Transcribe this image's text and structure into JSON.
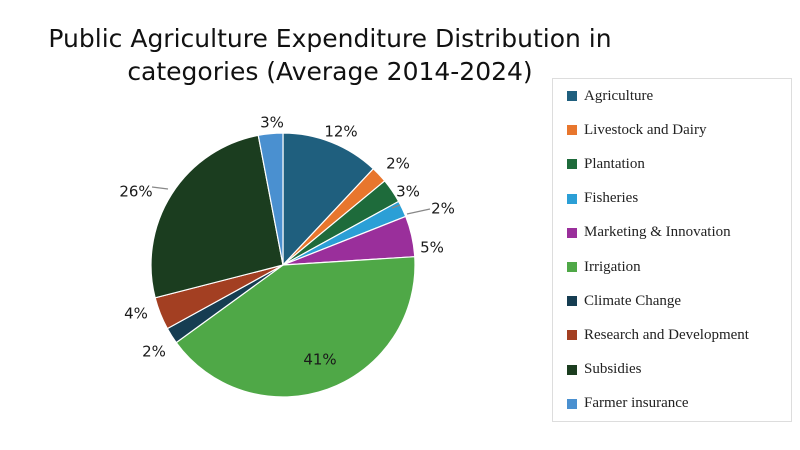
{
  "chart_data": {
    "type": "pie",
    "title_lines": [
      "Public Agriculture Expenditure Distribution in",
      "categories (Average 2014-2024)"
    ],
    "unit": "%",
    "slices": [
      {
        "name": "Agriculture",
        "value": 12,
        "label": "12%",
        "color": "#1f5f7e"
      },
      {
        "name": "Livestock and Dairy",
        "value": 2,
        "label": "2%",
        "color": "#e8762d"
      },
      {
        "name": "Plantation",
        "value": 3,
        "label": "3%",
        "color": "#1e6b3b"
      },
      {
        "name": "Fisheries",
        "value": 2,
        "label": "2%",
        "color": "#2b9fd6"
      },
      {
        "name": "Marketing & Innovation",
        "value": 5,
        "label": "5%",
        "color": "#9a2f9b"
      },
      {
        "name": "Irrigation",
        "value": 41,
        "label": "41%",
        "color": "#4fa847"
      },
      {
        "name": "Climate Change",
        "value": 2,
        "label": "2%",
        "color": "#163d52"
      },
      {
        "name": "Research and Development",
        "value": 4,
        "label": "4%",
        "color": "#a33f22"
      },
      {
        "name": "Subsidies",
        "value": 26,
        "label": "26%",
        "color": "#1b3d1f"
      },
      {
        "name": "Farmer insurance",
        "value": 3,
        "label": "3%",
        "color": "#4a90d0"
      }
    ],
    "start_angle": "12 o'clock",
    "direction": "clockwise",
    "legend_position": "right"
  }
}
